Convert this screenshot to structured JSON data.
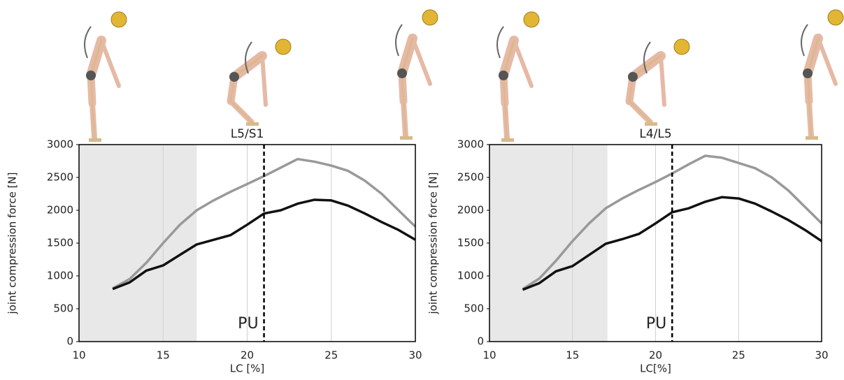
{
  "chart_data": [
    {
      "type": "line",
      "title": "L5/S1",
      "x_label": "LC [%]",
      "y_label": "joint compression force [N]",
      "x": [
        12,
        13,
        14,
        15,
        16,
        17,
        18,
        19,
        20,
        21,
        22,
        23,
        24,
        25,
        26,
        27,
        28,
        29,
        30
      ],
      "series": [
        {
          "color": "#999999",
          "values": [
            810,
            950,
            1200,
            1500,
            1780,
            2000,
            2150,
            2280,
            2400,
            2520,
            2650,
            2780,
            2740,
            2680,
            2600,
            2450,
            2250,
            2000,
            1750
          ]
        },
        {
          "color": "#111111",
          "values": [
            800,
            900,
            1080,
            1160,
            1320,
            1480,
            1550,
            1620,
            1780,
            1950,
            2000,
            2100,
            2160,
            2150,
            2070,
            1950,
            1820,
            1700,
            1550
          ]
        }
      ],
      "xlim": [
        10,
        30
      ],
      "xticks": [
        10,
        15,
        20,
        25,
        30
      ],
      "ylim": [
        0,
        3000
      ],
      "yticks": [
        0,
        500,
        1000,
        1500,
        2000,
        2500,
        3000
      ],
      "grid": "x",
      "shaded_xrange": [
        10,
        17
      ],
      "annotations": [
        {
          "x": 21,
          "label": "PU"
        }
      ]
    },
    {
      "type": "line",
      "title": "L4/L5",
      "x_label": "LC[%]",
      "y_label": "joint compression force [N]",
      "x": [
        12,
        13,
        14,
        15,
        16,
        17,
        18,
        19,
        20,
        21,
        22,
        23,
        24,
        25,
        26,
        27,
        28,
        29,
        30
      ],
      "series": [
        {
          "color": "#999999",
          "values": [
            800,
            960,
            1230,
            1530,
            1800,
            2030,
            2180,
            2310,
            2430,
            2560,
            2700,
            2830,
            2800,
            2720,
            2640,
            2500,
            2300,
            2050,
            1800
          ]
        },
        {
          "color": "#111111",
          "values": [
            790,
            890,
            1070,
            1150,
            1320,
            1490,
            1560,
            1640,
            1800,
            1970,
            2030,
            2130,
            2200,
            2180,
            2100,
            1980,
            1850,
            1700,
            1530
          ]
        }
      ],
      "xlim": [
        10,
        30
      ],
      "xticks": [
        10,
        15,
        20,
        25,
        30
      ],
      "ylim": [
        0,
        3000
      ],
      "yticks": [
        0,
        500,
        1000,
        1500,
        2000,
        2500,
        3000
      ],
      "grid": "x",
      "shaded_xrange": [
        10,
        17.1
      ],
      "annotations": [
        {
          "x": 21,
          "label": "PU"
        }
      ]
    }
  ]
}
